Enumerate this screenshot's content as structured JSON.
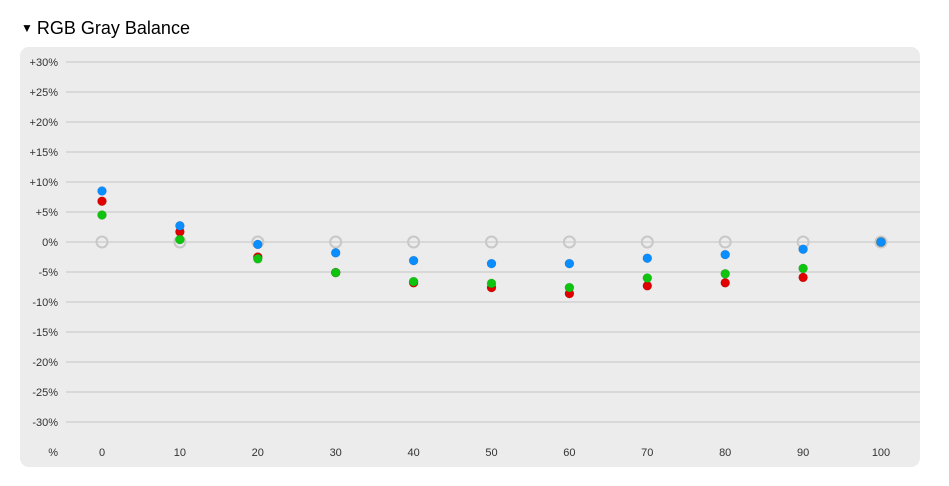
{
  "section": {
    "title": "RGB Gray Balance",
    "collapse_icon": "triangle-down-icon"
  },
  "colors": {
    "red": "#e00000",
    "green": "#0ec40e",
    "blue": "#0a8dff",
    "reference": "#c8c8c8",
    "grid": "#d2d2d2",
    "panel": "#ececec"
  },
  "chart_data": {
    "type": "scatter",
    "title": "RGB Gray Balance",
    "xlabel": "%",
    "ylabel": "",
    "x": [
      0,
      10,
      20,
      30,
      40,
      50,
      60,
      70,
      80,
      90,
      100
    ],
    "x_tick_labels": [
      "0",
      "10",
      "20",
      "30",
      "40",
      "50",
      "60",
      "70",
      "80",
      "90",
      "100"
    ],
    "y_ticks": [
      30,
      25,
      20,
      15,
      10,
      5,
      0,
      -5,
      -10,
      -15,
      -20,
      -25,
      -30
    ],
    "y_tick_labels": [
      "+30%",
      "+25%",
      "+20%",
      "+15%",
      "+10%",
      "+5%",
      "0%",
      "-5%",
      "-10%",
      "-15%",
      "-20%",
      "-25%",
      "-30%"
    ],
    "ylim": [
      -30,
      30
    ],
    "grid": true,
    "series": [
      {
        "key": "reference",
        "values": [
          0,
          0,
          0,
          0,
          0,
          0,
          0,
          0,
          0,
          0,
          0
        ]
      },
      {
        "key": "red",
        "values": [
          6.8,
          1.7,
          -2.5,
          -5.1,
          -6.8,
          -7.6,
          -8.6,
          -7.3,
          -6.8,
          -5.9,
          0
        ]
      },
      {
        "key": "green",
        "values": [
          4.5,
          0.4,
          -2.8,
          -5.1,
          -6.6,
          -6.9,
          -7.6,
          -6.0,
          -5.3,
          -4.4,
          0
        ]
      },
      {
        "key": "blue",
        "values": [
          8.5,
          2.7,
          -0.4,
          -1.8,
          -3.1,
          -3.6,
          -3.6,
          -2.7,
          -2.1,
          -1.2,
          0
        ]
      }
    ]
  }
}
